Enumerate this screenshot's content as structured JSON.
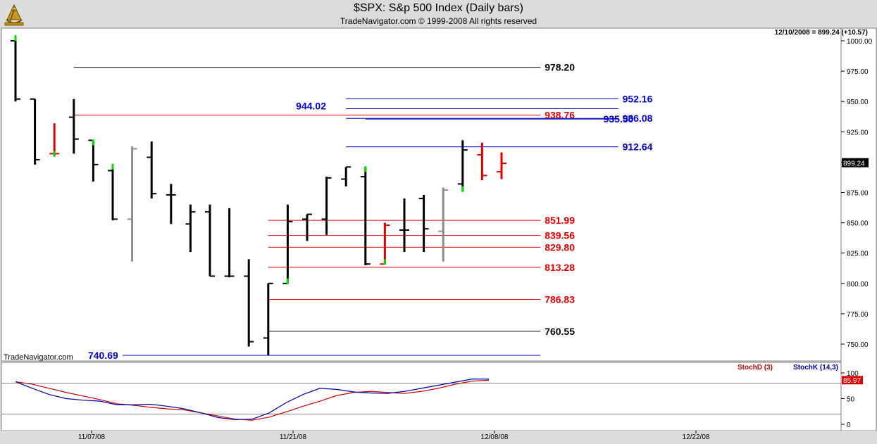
{
  "header": {
    "title": "$SPX:  S&p 500 Index  (Daily bars)",
    "subtitle": "TradeNavigator.com © 1999-2008 All rights reserved",
    "last_quote": "12/10/2008 = 899.24 (+10.57)",
    "watermark": "TradeNavigator.com"
  },
  "chart_data": [
    {
      "type": "ohlc",
      "ylim": [
        730,
        1010
      ],
      "yticks": [
        "1000.00",
        "975.00",
        "950.00",
        "925.00",
        "900.00",
        "875.00",
        "850.00",
        "825.00",
        "800.00",
        "775.00",
        "750.00"
      ],
      "x_labels": [
        {
          "index": 5,
          "label": "11/07/08"
        },
        {
          "index": 15,
          "label": "11/21/08"
        },
        {
          "index": 25,
          "label": "12/08/08"
        },
        {
          "index": 35,
          "label": "12/22/08"
        }
      ],
      "last_price": {
        "value": 899.24,
        "label": "899.24"
      },
      "bars": [
        {
          "o": 1000,
          "h": 1004,
          "l": 950,
          "c": 952,
          "color": "black",
          "hi_mark": true
        },
        {
          "o": 952,
          "h": 952,
          "l": 898,
          "c": 902,
          "color": "black"
        },
        {
          "o": 907,
          "h": 932,
          "l": 905,
          "c": 907,
          "color": "red",
          "lo_mark": true
        },
        {
          "o": 937,
          "h": 952,
          "l": 907,
          "c": 919,
          "color": "black"
        },
        {
          "o": 918,
          "h": 918,
          "l": 884,
          "c": 898,
          "color": "black",
          "hi_mark": true
        },
        {
          "o": 893,
          "h": 898,
          "l": 852,
          "c": 853,
          "color": "black",
          "hi_mark": true
        },
        {
          "o": 853,
          "h": 913,
          "l": 818,
          "c": 911,
          "color": "gray"
        },
        {
          "o": 904,
          "h": 917,
          "l": 870,
          "c": 874,
          "color": "black"
        },
        {
          "o": 873,
          "h": 882,
          "l": 849,
          "c": 873,
          "color": "black"
        },
        {
          "o": 849,
          "h": 865,
          "l": 826,
          "c": 859,
          "color": "black"
        },
        {
          "o": 859,
          "h": 865,
          "l": 806,
          "c": 806,
          "color": "black"
        },
        {
          "o": 806,
          "h": 862,
          "l": 805,
          "c": 806,
          "color": "black"
        },
        {
          "o": 806,
          "h": 820,
          "l": 748,
          "c": 752,
          "color": "black"
        },
        {
          "o": 755,
          "h": 800,
          "l": 741,
          "c": 800,
          "color": "black"
        },
        {
          "o": 800,
          "h": 865,
          "l": 800,
          "c": 851,
          "color": "black",
          "lo_mark": true
        },
        {
          "o": 853,
          "h": 857,
          "l": 835,
          "c": 857,
          "color": "black"
        },
        {
          "o": 853,
          "h": 888,
          "l": 840,
          "c": 887,
          "color": "black"
        },
        {
          "o": 886,
          "h": 896,
          "l": 880,
          "c": 896,
          "color": "black"
        },
        {
          "o": 888,
          "h": 896,
          "l": 815,
          "c": 816,
          "color": "black",
          "hi_mark": true
        },
        {
          "o": 816,
          "h": 850,
          "l": 816,
          "c": 848,
          "color": "red",
          "lo_mark": true
        },
        {
          "o": 844,
          "h": 870,
          "l": 826,
          "c": 844,
          "color": "black"
        },
        {
          "o": 870,
          "h": 873,
          "l": 826,
          "c": 845,
          "color": "black"
        },
        {
          "o": 843,
          "h": 879,
          "l": 818,
          "c": 877,
          "color": "gray"
        },
        {
          "o": 882,
          "h": 918,
          "l": 876,
          "c": 910,
          "color": "black",
          "lo_mark": true
        },
        {
          "o": 906,
          "h": 916,
          "l": 885,
          "c": 889,
          "color": "red"
        },
        {
          "o": 892,
          "h": 908,
          "l": 886,
          "c": 899,
          "color": "red"
        }
      ],
      "levels": [
        {
          "value": 978.2,
          "label": "978.20",
          "color": "black",
          "x1": 3,
          "x2": 27
        },
        {
          "value": 952.16,
          "label": "952.16",
          "color": "blue",
          "x1": 17,
          "x2": 31
        },
        {
          "value": 944.02,
          "label": "944.02",
          "color": "blue",
          "x1": 17,
          "x2": 31,
          "label_side": "left"
        },
        {
          "value": 938.76,
          "label": "938.76",
          "color": "red",
          "x1": 3,
          "x2": 27
        },
        {
          "value": 936.08,
          "label": "936.08",
          "color": "blue",
          "x1": 17,
          "x2": 31
        },
        {
          "value": 935.5,
          "label": "935.50",
          "color": "blue",
          "x1": 18,
          "x2": 31,
          "label_offset": -27
        },
        {
          "value": 912.64,
          "label": "912.64",
          "color": "blue",
          "x1": 17,
          "x2": 31
        },
        {
          "value": 851.99,
          "label": "851.99",
          "color": "red",
          "x1": 13,
          "x2": 27
        },
        {
          "value": 839.56,
          "label": "839.56",
          "color": "red",
          "x1": 13,
          "x2": 27
        },
        {
          "value": 829.8,
          "label": "829.80",
          "color": "red",
          "x1": 13,
          "x2": 27
        },
        {
          "value": 813.28,
          "label": "813.28",
          "color": "red",
          "x1": 13,
          "x2": 27
        },
        {
          "value": 786.83,
          "label": "786.83",
          "color": "red",
          "x1": 13,
          "x2": 27
        },
        {
          "value": 760.55,
          "label": "760.55",
          "color": "black",
          "x1": 13,
          "x2": 27
        },
        {
          "value": 740.69,
          "label": "740.69",
          "color": "blue",
          "x1": 5.5,
          "x2": 27,
          "label_side": "left"
        }
      ]
    },
    {
      "type": "line",
      "ylim": [
        0,
        100
      ],
      "yticks": [
        "100",
        "50",
        "0"
      ],
      "ref_lines": [
        80,
        20
      ],
      "last_value": {
        "value": 85.97,
        "label": "85.97"
      },
      "legend": {
        "stochd": "StochD (3)",
        "stochk": "StochK (14,3)"
      },
      "series": [
        {
          "name": "StochD (3)",
          "color": "#cc0000",
          "values": [
            83,
            78,
            70,
            62,
            55,
            48,
            40,
            37,
            33,
            30,
            28,
            22,
            16,
            10,
            8,
            14,
            24,
            35,
            45,
            56,
            62,
            64,
            62,
            60,
            64,
            70,
            78,
            84,
            86
          ]
        },
        {
          "name": "StochK (14,3)",
          "color": "#0000aa",
          "values": [
            83,
            70,
            58,
            50,
            47,
            45,
            38,
            38,
            39,
            35,
            30,
            22,
            13,
            9,
            10,
            22,
            42,
            58,
            70,
            68,
            63,
            61,
            60,
            64,
            70,
            76,
            82,
            88,
            88
          ]
        }
      ]
    }
  ]
}
